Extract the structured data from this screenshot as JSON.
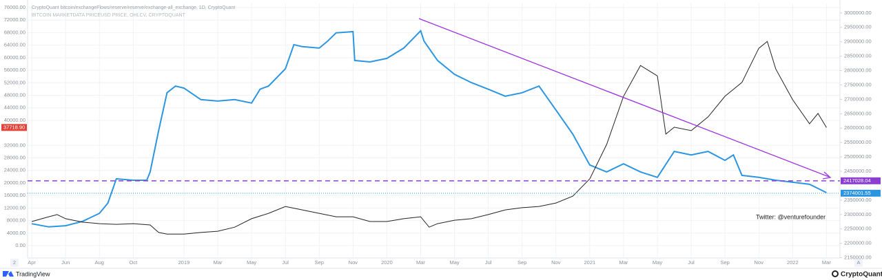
{
  "chart_data": {
    "type": "line",
    "title": "CryptoQuant bitcoin/exchangeFlows/reserve/reserve/exchange-all_exchange, 1D, CryptoQuant",
    "subtitle": "BITCOIN MARKETDATA PRICEUSD PRICE, OHLCV, CRYPTOQUANT",
    "annotation": "Twitter: @venturefounder",
    "footer": [
      "TradingView",
      "CryptoQuant"
    ],
    "buttons": [
      "2",
      "A"
    ],
    "grid": true,
    "xlim": [
      -0.25,
      47.8
    ],
    "xticks": [
      {
        "value": 0,
        "label": "Apr"
      },
      {
        "value": 2,
        "label": "Jun"
      },
      {
        "value": 4,
        "label": "Aug"
      },
      {
        "value": 6,
        "label": "Oct"
      },
      {
        "value": 9,
        "label": "2019"
      },
      {
        "value": 11,
        "label": "Mar"
      },
      {
        "value": 13,
        "label": "May"
      },
      {
        "value": 15,
        "label": "Jul"
      },
      {
        "value": 17,
        "label": "Sep"
      },
      {
        "value": 19,
        "label": "Nov"
      },
      {
        "value": 21,
        "label": "2020"
      },
      {
        "value": 23,
        "label": "Mar"
      },
      {
        "value": 25,
        "label": "May"
      },
      {
        "value": 27,
        "label": "Jul"
      },
      {
        "value": 29,
        "label": "Sep"
      },
      {
        "value": 31,
        "label": "Nov"
      },
      {
        "value": 33,
        "label": "2021"
      },
      {
        "value": 35,
        "label": "Mar"
      },
      {
        "value": 37,
        "label": "May"
      },
      {
        "value": 39,
        "label": "Jul"
      },
      {
        "value": 41,
        "label": "Sep"
      },
      {
        "value": 43,
        "label": "Nov"
      },
      {
        "value": 45,
        "label": "2022"
      },
      {
        "value": 47,
        "label": "Mar"
      }
    ],
    "ylim": [
      -3950,
      77320
    ],
    "yticks": [
      {
        "value": 0,
        "label": "0.00"
      },
      {
        "value": 4000,
        "label": "4000.00"
      },
      {
        "value": 8000,
        "label": "8000.00"
      },
      {
        "value": 12000,
        "label": "12000.00"
      },
      {
        "value": 16000,
        "label": "16000.00"
      },
      {
        "value": 20000,
        "label": "20000.00"
      },
      {
        "value": 24000,
        "label": "24000.00"
      },
      {
        "value": 28000,
        "label": "28000.00"
      },
      {
        "value": 32000,
        "label": "32000.00"
      },
      {
        "value": 40000,
        "label": "40000.00"
      },
      {
        "value": 44000,
        "label": "44000.00"
      },
      {
        "value": 48000,
        "label": "48000.00"
      },
      {
        "value": 52000,
        "label": "52000.00"
      },
      {
        "value": 56000,
        "label": "56000.00"
      },
      {
        "value": 60000,
        "label": "60000.00"
      },
      {
        "value": 64000,
        "label": "64000.00"
      },
      {
        "value": 68000,
        "label": "68000.00"
      },
      {
        "value": 72000,
        "label": "72000.00"
      },
      {
        "value": 76000,
        "label": "76000.00"
      }
    ],
    "y2lim": [
      2149000,
      3033000
    ],
    "y2ticks": [
      {
        "value": 2150000,
        "label": "2150000.00"
      },
      {
        "value": 2200000,
        "label": "2200000.00"
      },
      {
        "value": 2250000,
        "label": "2250000.00"
      },
      {
        "value": 2300000,
        "label": "2300000.00"
      },
      {
        "value": 2350000,
        "label": "2350000.00"
      },
      {
        "value": 2450000,
        "label": "2450000.00"
      },
      {
        "value": 2500000,
        "label": "2500000.00"
      },
      {
        "value": 2550000,
        "label": "2550000.00"
      },
      {
        "value": 2600000,
        "label": "2600000.00"
      },
      {
        "value": 2650000,
        "label": "2650000.00"
      },
      {
        "value": 2700000,
        "label": "2700000.00"
      },
      {
        "value": 2750000,
        "label": "2750000.00"
      },
      {
        "value": 2800000,
        "label": "2800000.00"
      },
      {
        "value": 2850000,
        "label": "2850000.00"
      },
      {
        "value": 2900000,
        "label": "2900000.00"
      },
      {
        "value": 2950000,
        "label": "2950000.00"
      },
      {
        "value": 3000000,
        "label": "3000000.00"
      }
    ],
    "series": [
      {
        "color": "#2b95e0",
        "axis": "y2",
        "x": [
          0,
          1,
          2,
          3,
          4,
          4.5,
          5,
          6,
          6.8,
          7,
          7.5,
          8,
          8.5,
          9,
          10,
          11,
          12,
          13,
          13.5,
          14,
          15,
          15.5,
          16,
          17,
          17.5,
          18,
          19,
          19.1,
          20,
          21,
          22,
          23,
          23.2,
          24,
          25,
          26,
          27,
          28,
          29,
          30,
          31,
          32,
          33,
          34,
          35,
          36,
          37,
          38,
          39,
          40,
          41,
          41.5,
          42,
          43,
          44,
          45,
          46,
          47
        ],
        "values": [
          2268000,
          2257000,
          2261000,
          2276000,
          2304000,
          2340000,
          2424000,
          2419000,
          2419000,
          2448000,
          2591000,
          2723000,
          2746000,
          2739000,
          2699000,
          2694000,
          2699000,
          2687000,
          2735000,
          2746000,
          2806000,
          2890000,
          2883000,
          2878000,
          2902000,
          2931000,
          2935000,
          2835000,
          2830000,
          2842000,
          2878000,
          2938000,
          2902000,
          2835000,
          2787000,
          2758000,
          2735000,
          2711000,
          2723000,
          2746000,
          2663000,
          2579000,
          2472000,
          2448000,
          2476000,
          2448000,
          2429000,
          2519000,
          2507000,
          2519000,
          2488000,
          2507000,
          2436000,
          2429000,
          2419000,
          2412000,
          2405000,
          2376000
        ]
      },
      {
        "color": "#222222",
        "axis": "y",
        "x": [
          0,
          1,
          1.5,
          2,
          3,
          4,
          5,
          6,
          7,
          7.5,
          8,
          9,
          10,
          11,
          12,
          13,
          14,
          15,
          16,
          17,
          18,
          19,
          20,
          21,
          22,
          23,
          23.5,
          24,
          25,
          26,
          27,
          28,
          29,
          30,
          31,
          32,
          33,
          34,
          35,
          36,
          37,
          37.5,
          38,
          39,
          40,
          41,
          42,
          43,
          43.5,
          44,
          45,
          46,
          46.5,
          47
        ],
        "values": [
          7700,
          9200,
          9900,
          8600,
          7500,
          7000,
          6800,
          7000,
          6600,
          4200,
          3700,
          3700,
          4200,
          4600,
          5900,
          8600,
          10300,
          12500,
          11400,
          10300,
          9200,
          9200,
          7700,
          7700,
          8600,
          9200,
          5900,
          7000,
          8100,
          8600,
          9900,
          11400,
          12100,
          12500,
          13600,
          15800,
          21300,
          32300,
          47700,
          57500,
          54200,
          35600,
          37800,
          36700,
          41100,
          47700,
          52100,
          63000,
          65200,
          56400,
          46600,
          38900,
          42200,
          37700
        ]
      }
    ],
    "last_price": {
      "value": 37718.9,
      "label": "37718.90",
      "color": "#e0443a"
    },
    "reference_lines": [
      {
        "value": 2417028.04,
        "label": "2417028.04",
        "color": "#8a3fd1",
        "style": "dashed"
      },
      {
        "value": 2374001.55,
        "label": "2374001.55",
        "color": "#2b95e0",
        "style": "dotted"
      }
    ]
  }
}
